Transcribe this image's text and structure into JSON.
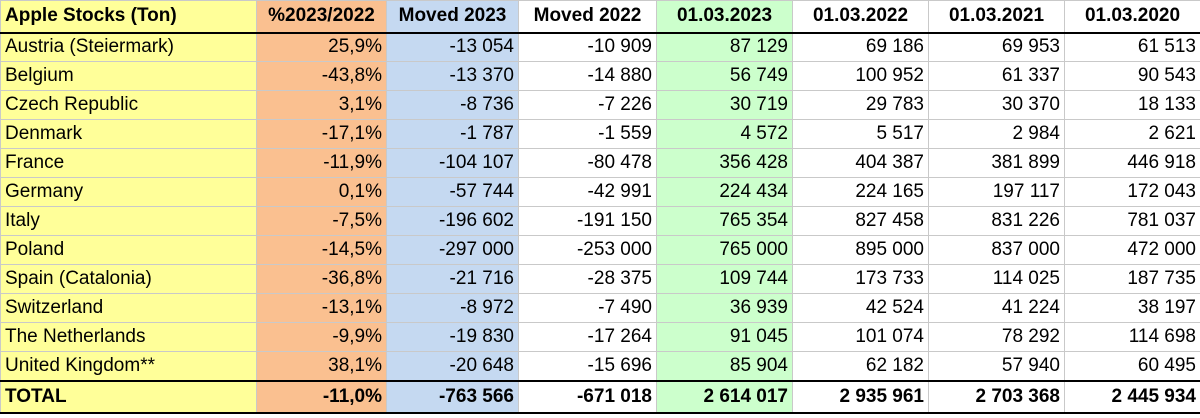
{
  "headers": [
    "Apple Stocks (Ton)",
    "%2023/2022",
    "Moved 2023",
    "Moved 2022",
    "01.03.2023",
    "01.03.2022",
    "01.03.2021",
    "01.03.2020"
  ],
  "rows": [
    [
      "Austria (Steiermark)",
      "25,9%",
      "-13 054",
      "-10 909",
      "87 129",
      "69 186",
      "69 953",
      "61 513"
    ],
    [
      "Belgium",
      "-43,8%",
      "-13 370",
      "-14 880",
      "56 749",
      "100 952",
      "61 337",
      "90 543"
    ],
    [
      "Czech Republic",
      "3,1%",
      "-8 736",
      "-7 226",
      "30 719",
      "29 783",
      "30 370",
      "18 133"
    ],
    [
      "Denmark",
      "-17,1%",
      "-1 787",
      "-1 559",
      "4 572",
      "5 517",
      "2 984",
      "2 621"
    ],
    [
      "France",
      "-11,9%",
      "-104 107",
      "-80 478",
      "356 428",
      "404 387",
      "381 899",
      "446 918"
    ],
    [
      "Germany",
      "0,1%",
      "-57 744",
      "-42 991",
      "224 434",
      "224 165",
      "197 117",
      "172 043"
    ],
    [
      "Italy",
      "-7,5%",
      "-196 602",
      "-191 150",
      "765 354",
      "827 458",
      "831 226",
      "781 037"
    ],
    [
      "Poland",
      "-14,5%",
      "-297 000",
      "-253 000",
      "765 000",
      "895 000",
      "837 000",
      "472 000"
    ],
    [
      "Spain (Catalonia)",
      "-36,8%",
      "-21 716",
      "-28 375",
      "109 744",
      "173 733",
      "114 025",
      "187 735"
    ],
    [
      "Switzerland",
      "-13,1%",
      "-8 972",
      "-7 490",
      "36 939",
      "42 524",
      "41 224",
      "38 197"
    ],
    [
      "The Netherlands",
      "-9,9%",
      "-19 830",
      "-17 264",
      "91 045",
      "101 074",
      "78 292",
      "114 698"
    ],
    [
      "United Kingdom**",
      "38,1%",
      "-20 648",
      "-15 696",
      "85 904",
      "62 182",
      "57 940",
      "60 495"
    ]
  ],
  "total": [
    "TOTAL",
    "-11,0%",
    "-763 566",
    "-671 018",
    "2 614 017",
    "2 935 961",
    "2 703 368",
    "2 445 934"
  ],
  "colors": {
    "country_column": "#ffff99",
    "percent_column": "#fac090",
    "moved_2023_column": "#c5d9f1",
    "stock_2023_column": "#ccffcc"
  }
}
